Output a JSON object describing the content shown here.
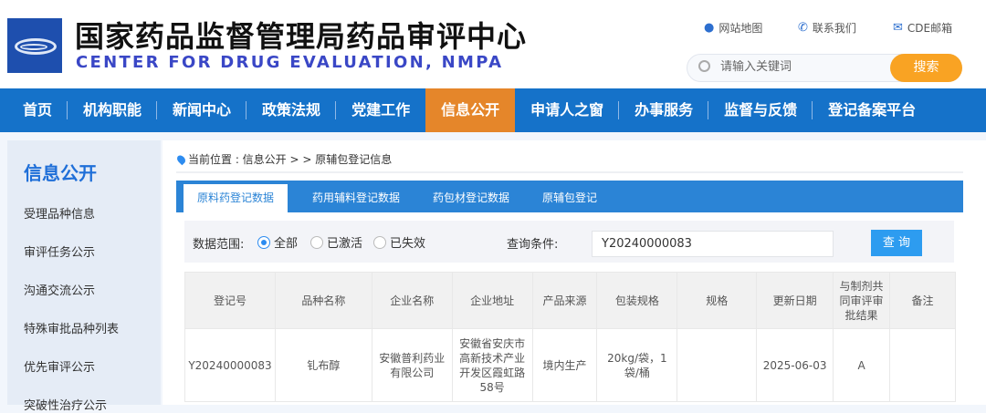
{
  "header": {
    "title_cn": "国家药品监督管理局药品审评中心",
    "title_en": "CENTER FOR DRUG EVALUATION, NMPA",
    "links": [
      {
        "icon": "map-pin-icon",
        "label": "网站地图"
      },
      {
        "icon": "phone-icon",
        "label": "联系我们"
      },
      {
        "icon": "mail-icon",
        "label": "CDE邮箱"
      }
    ],
    "search": {
      "placeholder": "请输入关键词",
      "button": "搜索"
    }
  },
  "nav": {
    "items": [
      "首页",
      "机构职能",
      "新闻中心",
      "政策法规",
      "党建工作",
      "信息公开",
      "申请人之窗",
      "办事服务",
      "监督与反馈",
      "登记备案平台"
    ],
    "active": "信息公开"
  },
  "sidebar": {
    "title": "信息公开",
    "items": [
      "受理品种信息",
      "审评任务公示",
      "沟通交流公示",
      "特殊审批品种列表",
      "优先审评公示",
      "突破性治疗公示"
    ]
  },
  "breadcrumb": {
    "prefix": "当前位置 : 信息公开 > > 原辅包登记信息"
  },
  "tabs": [
    "原料药登记数据",
    "药用辅料登记数据",
    "药包材登记数据",
    "原辅包登记"
  ],
  "filter": {
    "range_label": "数据范围:",
    "options": [
      "全部",
      "已激活",
      "已失效"
    ],
    "selected": "全部",
    "query_label": "查询条件:",
    "query_value": "Y20240000083",
    "query_button": "查 询"
  },
  "table": {
    "headers": [
      "登记号",
      "品种名称",
      "企业名称",
      "企业地址",
      "产品来源",
      "包装规格",
      "规格",
      "更新日期",
      "与制剂共同审评审批结果",
      "备注"
    ],
    "rows": [
      [
        "Y20240000083",
        "钆布醇",
        "安徽普利药业有限公司",
        "安徽省安庆市高新技术产业开发区霞虹路58号",
        "境内生产",
        "20kg/袋，1袋/桶",
        "",
        "2025-06-03",
        "A",
        ""
      ]
    ]
  },
  "colors": {
    "nav": "#1572c9",
    "nav_active": "#e5862a",
    "search_button": "#f9a323",
    "tab_bar": "#2b84d6",
    "query_button": "#2d9cf0"
  }
}
